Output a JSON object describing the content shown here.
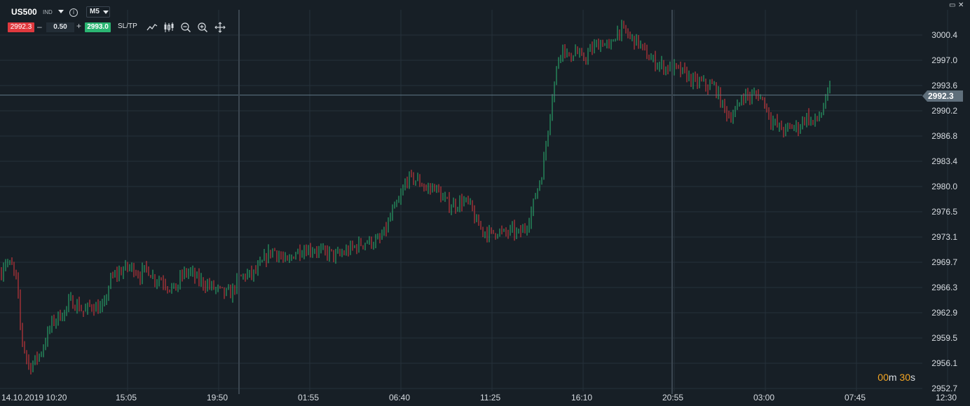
{
  "header": {
    "symbol": "US500",
    "symbol_type": "IND",
    "info_icon": "i",
    "timeframe": "M5",
    "sell_price": "2992.3",
    "lot_minus": "–",
    "lot_size": "0.50",
    "lot_plus": "+",
    "buy_price": "2993.0",
    "sltp_label": "SL/TP",
    "tools": [
      "line-chart-icon",
      "candle-chart-icon",
      "zoom-out-icon",
      "zoom-in-icon",
      "crosshair-icon"
    ]
  },
  "window_controls": {
    "restore": "▭",
    "close": "✕"
  },
  "current_price_tag": "2992.3",
  "timer": {
    "minutes": "00",
    "m_label": "m",
    "seconds": "30",
    "s_label": "s"
  },
  "colors": {
    "bull": "#2bb673",
    "bear": "#e0393e",
    "background": "#171f26",
    "grid": "#26313a"
  },
  "chart_data": {
    "type": "candlestick",
    "y_ticks": [
      "3000.4",
      "2997.0",
      "2993.6",
      "2990.2",
      "2986.8",
      "2983.4",
      "2980.0",
      "2976.5",
      "2973.1",
      "2969.7",
      "2966.3",
      "2962.9",
      "2959.5",
      "2956.1",
      "2952.7"
    ],
    "x_ticks": [
      "14.10.2019 10:20",
      "15:05",
      "19:50",
      "01:55",
      "06:40",
      "11:25",
      "16:10",
      "20:55",
      "03:00",
      "07:45",
      "12:30"
    ],
    "ylim": [
      2952.7,
      3003.5
    ],
    "current_price": 2992.3,
    "grid": true,
    "path_points": [
      [
        0,
        2967.5
      ],
      [
        6,
        2970.0
      ],
      [
        12,
        2969.5
      ],
      [
        18,
        2969.0
      ],
      [
        24,
        2967.0
      ],
      [
        30,
        2960.0
      ],
      [
        36,
        2957.5
      ],
      [
        42,
        2955.5
      ],
      [
        50,
        2956.5
      ],
      [
        58,
        2957.5
      ],
      [
        66,
        2959.5
      ],
      [
        74,
        2961.5
      ],
      [
        84,
        2962.5
      ],
      [
        92,
        2963.0
      ],
      [
        100,
        2964.5
      ],
      [
        110,
        2964.0
      ],
      [
        120,
        2963.0
      ],
      [
        130,
        2964.0
      ],
      [
        140,
        2963.5
      ],
      [
        148,
        2963.5
      ],
      [
        156,
        2967.0
      ],
      [
        164,
        2968.0
      ],
      [
        172,
        2968.5
      ],
      [
        180,
        2969.0
      ],
      [
        190,
        2969.0
      ],
      [
        200,
        2968.0
      ],
      [
        210,
        2969.0
      ],
      [
        220,
        2967.5
      ],
      [
        230,
        2967.5
      ],
      [
        240,
        2966.5
      ],
      [
        250,
        2966.0
      ],
      [
        260,
        2968.0
      ],
      [
        270,
        2968.5
      ],
      [
        280,
        2967.5
      ],
      [
        290,
        2967.0
      ],
      [
        300,
        2966.5
      ],
      [
        310,
        2966.0
      ],
      [
        320,
        2965.5
      ],
      [
        330,
        2965.5
      ],
      [
        340,
        2967.5
      ],
      [
        350,
        2968.0
      ],
      [
        360,
        2968.0
      ],
      [
        370,
        2969.0
      ],
      [
        380,
        2970.5
      ],
      [
        390,
        2971.5
      ],
      [
        400,
        2970.5
      ],
      [
        410,
        2969.5
      ],
      [
        420,
        2971.0
      ],
      [
        430,
        2971.5
      ],
      [
        440,
        2971.5
      ],
      [
        450,
        2971.5
      ],
      [
        460,
        2971.0
      ],
      [
        470,
        2971.0
      ],
      [
        480,
        2970.5
      ],
      [
        490,
        2971.0
      ],
      [
        500,
        2971.5
      ],
      [
        510,
        2972.0
      ],
      [
        520,
        2972.5
      ],
      [
        530,
        2972.5
      ],
      [
        540,
        2972.5
      ],
      [
        550,
        2974.0
      ],
      [
        560,
        2976.5
      ],
      [
        570,
        2978.0
      ],
      [
        580,
        2981.0
      ],
      [
        590,
        2981.0
      ],
      [
        600,
        2980.5
      ],
      [
        610,
        2979.5
      ],
      [
        620,
        2980.0
      ],
      [
        630,
        2978.5
      ],
      [
        640,
        2977.5
      ],
      [
        650,
        2977.5
      ],
      [
        660,
        2978.0
      ],
      [
        670,
        2977.5
      ],
      [
        680,
        2975.0
      ],
      [
        690,
        2974.0
      ],
      [
        700,
        2973.5
      ],
      [
        710,
        2974.0
      ],
      [
        720,
        2973.5
      ],
      [
        730,
        2974.0
      ],
      [
        740,
        2973.5
      ],
      [
        750,
        2974.5
      ],
      [
        758,
        2976.5
      ],
      [
        766,
        2979.5
      ],
      [
        774,
        2982.0
      ],
      [
        780,
        2986.5
      ],
      [
        786,
        2991.0
      ],
      [
        792,
        2994.5
      ],
      [
        798,
        2998.0
      ],
      [
        804,
        2999.0
      ],
      [
        812,
        2997.0
      ],
      [
        820,
        2998.5
      ],
      [
        830,
        2997.0
      ],
      [
        840,
        2998.0
      ],
      [
        850,
        2999.0
      ],
      [
        860,
        2999.5
      ],
      [
        870,
        2998.5
      ],
      [
        880,
        3001.0
      ],
      [
        890,
        3001.0
      ],
      [
        900,
        3000.0
      ],
      [
        910,
        2999.5
      ],
      [
        920,
        2998.0
      ],
      [
        930,
        2997.0
      ],
      [
        940,
        2996.5
      ],
      [
        950,
        2996.0
      ],
      [
        960,
        2996.0
      ],
      [
        970,
        2995.5
      ],
      [
        980,
        2995.0
      ],
      [
        990,
        2994.0
      ],
      [
        1000,
        2994.0
      ],
      [
        1010,
        2993.5
      ],
      [
        1020,
        2993.5
      ],
      [
        1030,
        2991.0
      ],
      [
        1040,
        2989.5
      ],
      [
        1050,
        2990.0
      ],
      [
        1060,
        2992.5
      ],
      [
        1070,
        2992.0
      ],
      [
        1080,
        2992.5
      ],
      [
        1090,
        2991.5
      ],
      [
        1100,
        2989.0
      ],
      [
        1110,
        2988.0
      ],
      [
        1120,
        2987.5
      ],
      [
        1130,
        2988.0
      ],
      [
        1140,
        2988.0
      ],
      [
        1150,
        2989.5
      ],
      [
        1160,
        2988.5
      ],
      [
        1170,
        2989.5
      ],
      [
        1178,
        2991.5
      ],
      [
        1184,
        2993.0
      ]
    ]
  }
}
